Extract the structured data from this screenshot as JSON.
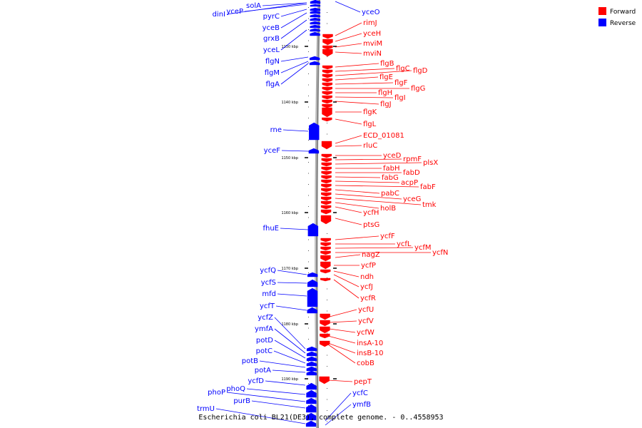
{
  "caption": "Escherichia coli BL21(DE3), complete genome. - 0..4558953",
  "legend": [
    {
      "label": "Forward",
      "color": "#ff0000"
    },
    {
      "label": "Reverse",
      "color": "#0000ff"
    }
  ],
  "colors": {
    "forward": "#ff0000",
    "reverse": "#0000ff",
    "backbone": "#888888"
  },
  "ticks": [
    "1130 kbp",
    "1140 kbp",
    "1150 kbp",
    "1160 kbp",
    "1170 kbp",
    "1180 kbp",
    "1190 kbp"
  ],
  "reverse_genes": [
    "dinI",
    "yceP",
    "solA",
    "pyrC",
    "yceB",
    "grxB",
    "yceL",
    "flgN",
    "flgM",
    "flgA",
    "rne",
    "yceF",
    "fhuE",
    "ycfQ",
    "ycfS",
    "mfd",
    "ycfT",
    "ycfZ",
    "ymfA",
    "potD",
    "potC",
    "potB",
    "potA",
    "ycfD",
    "phoP",
    "phoQ",
    "purB",
    "trmU",
    "yceO",
    "ycfC",
    "ymfB"
  ],
  "forward_genes": [
    "rimJ",
    "yceH",
    "mviM",
    "mviN",
    "flgB",
    "flgC",
    "flgD",
    "flgE",
    "flgF",
    "flgG",
    "flgH",
    "flgI",
    "flgJ",
    "flgK",
    "flgL",
    "ECD_01081",
    "rluC",
    "yceD",
    "rpmF",
    "plsX",
    "fabH",
    "fabD",
    "fabG",
    "acpP",
    "fabF",
    "pabC",
    "yceG",
    "tmk",
    "holB",
    "ycfH",
    "ptsG",
    "ycfF",
    "ycfL",
    "ycfM",
    "ycfN",
    "nagZ",
    "ycfP",
    "ndh",
    "ycfJ",
    "ycfR",
    "ycfU",
    "ycfV",
    "ycfW",
    "insA-10",
    "insB-10",
    "cobB",
    "pepT"
  ]
}
